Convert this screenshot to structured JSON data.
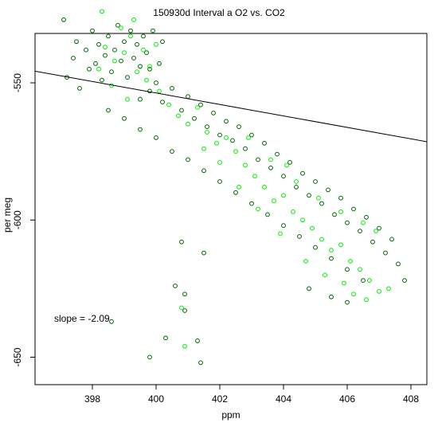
{
  "chart_data": {
    "type": "scatter",
    "title": "150930d   Interval a O2 vs. CO2",
    "xlabel": "ppm",
    "ylabel": "per meg",
    "xlim": [
      396.2,
      408.5
    ],
    "ylim": [
      -660,
      -532
    ],
    "x_ticks": [
      398,
      400,
      402,
      404,
      406,
      408
    ],
    "y_ticks": [
      -550,
      -600,
      -650
    ],
    "annotation": "slope =  -2.09",
    "fit_line": {
      "slope": -2.09,
      "intercept": 282.3
    },
    "grid": false,
    "point_colors": {
      "dark": "#006400",
      "bright": "#00ee00"
    },
    "series": [
      {
        "points": [
          [
            397.1,
            -527
          ],
          [
            397.2,
            -548
          ],
          [
            397.4,
            -541
          ],
          [
            397.5,
            -535
          ],
          [
            397.6,
            -552
          ],
          [
            397.8,
            -538
          ],
          [
            397.9,
            -545
          ],
          [
            398.0,
            -531
          ],
          [
            398.1,
            -543
          ],
          [
            398.2,
            -536
          ],
          [
            398.3,
            -549
          ],
          [
            398.4,
            -540
          ],
          [
            398.5,
            -533
          ],
          [
            398.6,
            -546
          ],
          [
            398.7,
            -538
          ],
          [
            398.8,
            -529
          ],
          [
            398.9,
            -542
          ],
          [
            399.0,
            -535
          ],
          [
            399.1,
            -548
          ],
          [
            399.2,
            -531
          ],
          [
            399.3,
            -541
          ],
          [
            399.4,
            -536
          ],
          [
            399.5,
            -544
          ],
          [
            399.6,
            -533
          ],
          [
            399.7,
            -539
          ],
          [
            399.8,
            -545
          ],
          [
            399.9,
            -531
          ],
          [
            400.0,
            -550
          ],
          [
            400.1,
            -543
          ],
          [
            400.2,
            -535
          ],
          [
            399.5,
            -556
          ],
          [
            399.8,
            -553
          ],
          [
            400.2,
            -557
          ],
          [
            400.5,
            -552
          ],
          [
            400.8,
            -560
          ],
          [
            401.0,
            -555
          ],
          [
            401.2,
            -563
          ],
          [
            401.4,
            -558
          ],
          [
            401.6,
            -566
          ],
          [
            401.8,
            -561
          ],
          [
            402.0,
            -569
          ],
          [
            402.2,
            -564
          ],
          [
            402.4,
            -571
          ],
          [
            402.6,
            -566
          ],
          [
            402.8,
            -574
          ],
          [
            403.0,
            -569
          ],
          [
            403.2,
            -578
          ],
          [
            403.4,
            -572
          ],
          [
            403.6,
            -581
          ],
          [
            403.8,
            -576
          ],
          [
            404.0,
            -584
          ],
          [
            404.2,
            -579
          ],
          [
            404.4,
            -588
          ],
          [
            404.6,
            -583
          ],
          [
            404.8,
            -591
          ],
          [
            405.0,
            -586
          ],
          [
            405.2,
            -594
          ],
          [
            405.4,
            -589
          ],
          [
            405.6,
            -598
          ],
          [
            405.8,
            -592
          ],
          [
            406.0,
            -601
          ],
          [
            406.2,
            -596
          ],
          [
            406.4,
            -604
          ],
          [
            406.6,
            -599
          ],
          [
            406.8,
            -608
          ],
          [
            407.0,
            -603
          ],
          [
            407.2,
            -612
          ],
          [
            407.4,
            -607
          ],
          [
            407.6,
            -616
          ],
          [
            407.8,
            -622
          ],
          [
            398.5,
            -560
          ],
          [
            399.0,
            -563
          ],
          [
            399.5,
            -567
          ],
          [
            400.0,
            -570
          ],
          [
            400.5,
            -575
          ],
          [
            401.0,
            -578
          ],
          [
            401.5,
            -582
          ],
          [
            402.0,
            -586
          ],
          [
            402.5,
            -590
          ],
          [
            403.0,
            -594
          ],
          [
            403.5,
            -598
          ],
          [
            404.0,
            -602
          ],
          [
            404.5,
            -606
          ],
          [
            405.0,
            -610
          ],
          [
            405.5,
            -614
          ],
          [
            406.0,
            -618
          ],
          [
            406.5,
            -622
          ],
          [
            404.8,
            -625
          ],
          [
            405.5,
            -628
          ],
          [
            406.0,
            -630
          ],
          [
            400.8,
            -608
          ],
          [
            401.5,
            -612
          ],
          [
            400.6,
            -624
          ],
          [
            400.9,
            -627
          ],
          [
            400.3,
            -643
          ],
          [
            399.8,
            -650
          ],
          [
            401.3,
            -644
          ],
          [
            401.4,
            -652
          ],
          [
            398.6,
            -637
          ],
          [
            400.9,
            -633
          ]
        ]
      },
      {
        "points": [
          [
            398.4,
            -537
          ],
          [
            398.7,
            -542
          ],
          [
            399.0,
            -539
          ],
          [
            399.2,
            -533
          ],
          [
            399.4,
            -546
          ],
          [
            399.6,
            -538
          ],
          [
            399.8,
            -544
          ],
          [
            400.0,
            -536
          ],
          [
            398.2,
            -545
          ],
          [
            398.9,
            -530
          ],
          [
            399.3,
            -527
          ],
          [
            399.7,
            -549
          ],
          [
            398.6,
            -551
          ],
          [
            399.1,
            -556
          ],
          [
            400.1,
            -553
          ],
          [
            400.4,
            -558
          ],
          [
            400.7,
            -562
          ],
          [
            401.0,
            -565
          ],
          [
            401.3,
            -559
          ],
          [
            401.6,
            -568
          ],
          [
            401.9,
            -572
          ],
          [
            402.2,
            -570
          ],
          [
            402.5,
            -575
          ],
          [
            402.8,
            -580
          ],
          [
            403.1,
            -584
          ],
          [
            403.4,
            -588
          ],
          [
            403.7,
            -593
          ],
          [
            404.0,
            -591
          ],
          [
            404.3,
            -597
          ],
          [
            404.6,
            -600
          ],
          [
            404.9,
            -603
          ],
          [
            405.2,
            -607
          ],
          [
            405.5,
            -611
          ],
          [
            405.8,
            -609
          ],
          [
            406.1,
            -615
          ],
          [
            406.4,
            -618
          ],
          [
            406.7,
            -622
          ],
          [
            407.0,
            -626
          ],
          [
            405.3,
            -620
          ],
          [
            404.7,
            -615
          ],
          [
            403.9,
            -605
          ],
          [
            403.2,
            -596
          ],
          [
            402.6,
            -588
          ],
          [
            402.0,
            -579
          ],
          [
            401.5,
            -574
          ],
          [
            405.9,
            -623
          ],
          [
            406.2,
            -627
          ],
          [
            406.6,
            -629
          ],
          [
            407.3,
            -625
          ],
          [
            404.1,
            -580
          ],
          [
            402.9,
            -570
          ],
          [
            403.6,
            -578
          ],
          [
            404.4,
            -586
          ],
          [
            405.1,
            -592
          ],
          [
            405.8,
            -597
          ],
          [
            406.5,
            -601
          ],
          [
            406.9,
            -604
          ],
          [
            398.3,
            -524
          ],
          [
            400.9,
            -646
          ],
          [
            400.8,
            -632
          ]
        ]
      }
    ]
  }
}
